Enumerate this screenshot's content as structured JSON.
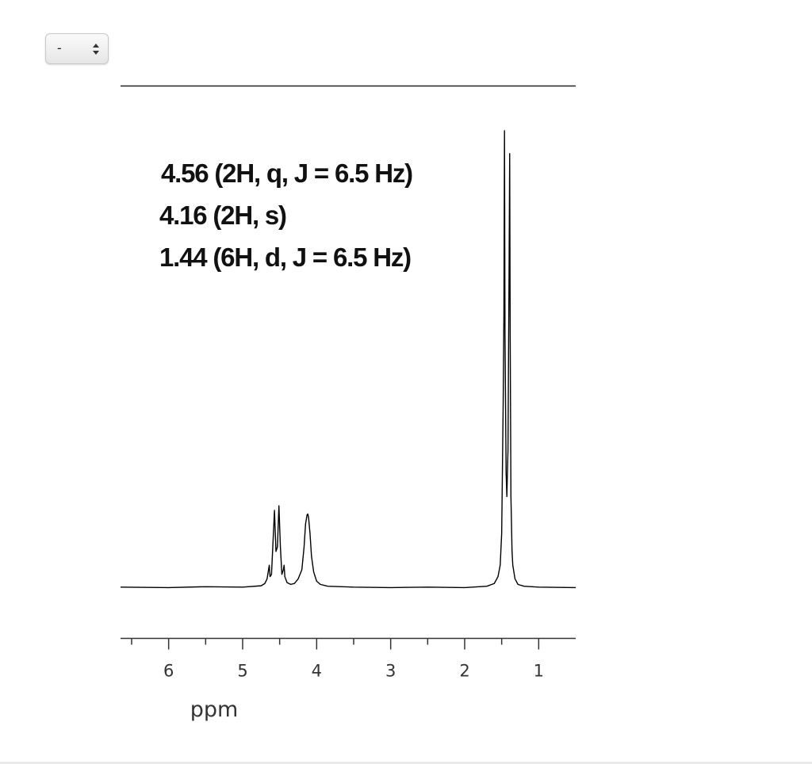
{
  "previous_axis_label": "ppm",
  "select": {
    "value": "-"
  },
  "chart_data": {
    "type": "line",
    "annotations": [
      "4.56 (2H, q, J = 6.5 Hz)",
      "4.16 (2H, s)",
      "1.44 (6H, d, J = 6.5 Hz)"
    ],
    "x_label": "ppm",
    "x": [
      6.65,
      6.0,
      5.5,
      5.0,
      4.75,
      4.7,
      4.67,
      4.65,
      4.64,
      4.63,
      4.61,
      4.59,
      4.57,
      4.55,
      4.53,
      4.51,
      4.49,
      4.47,
      4.45,
      4.44,
      4.43,
      4.4,
      4.35,
      4.3,
      4.25,
      4.2,
      4.17,
      4.15,
      4.13,
      4.12,
      4.11,
      4.09,
      4.07,
      4.04,
      4.0,
      3.95,
      3.85,
      3.5,
      3.0,
      2.5,
      2.0,
      1.7,
      1.6,
      1.55,
      1.52,
      1.5,
      1.48,
      1.47,
      1.462,
      1.455,
      1.44,
      1.43,
      1.415,
      1.4,
      1.392,
      1.385,
      1.375,
      1.36,
      1.35,
      1.32,
      1.28,
      1.2,
      1.0,
      0.5
    ],
    "values": [
      0.2,
      0.1,
      0.3,
      0.2,
      0.5,
      1,
      2,
      4,
      5,
      2.5,
      3,
      10,
      17,
      8,
      9,
      18,
      9,
      3,
      4,
      5,
      2.5,
      1.2,
      0.8,
      1,
      2,
      4,
      9,
      14,
      16,
      16.2,
      15.5,
      12,
      7,
      3.5,
      1.5,
      0.8,
      0.4,
      0.2,
      0.1,
      0.2,
      0.1,
      0.4,
      1,
      2.5,
      5,
      12,
      40,
      60,
      100,
      55,
      25,
      20,
      30,
      70,
      95,
      55,
      20,
      8,
      5,
      2,
      0.8,
      0.4,
      0.2,
      0.1
    ],
    "color": "#000000",
    "xlim": [
      6.65,
      0.5
    ],
    "xticks": [
      6,
      5,
      4,
      3,
      2,
      1
    ],
    "x_minor_ticks": [
      6.5,
      5.5,
      4.5,
      3.5,
      2.5,
      1.5
    ],
    "ylim": [
      0,
      100
    ]
  }
}
